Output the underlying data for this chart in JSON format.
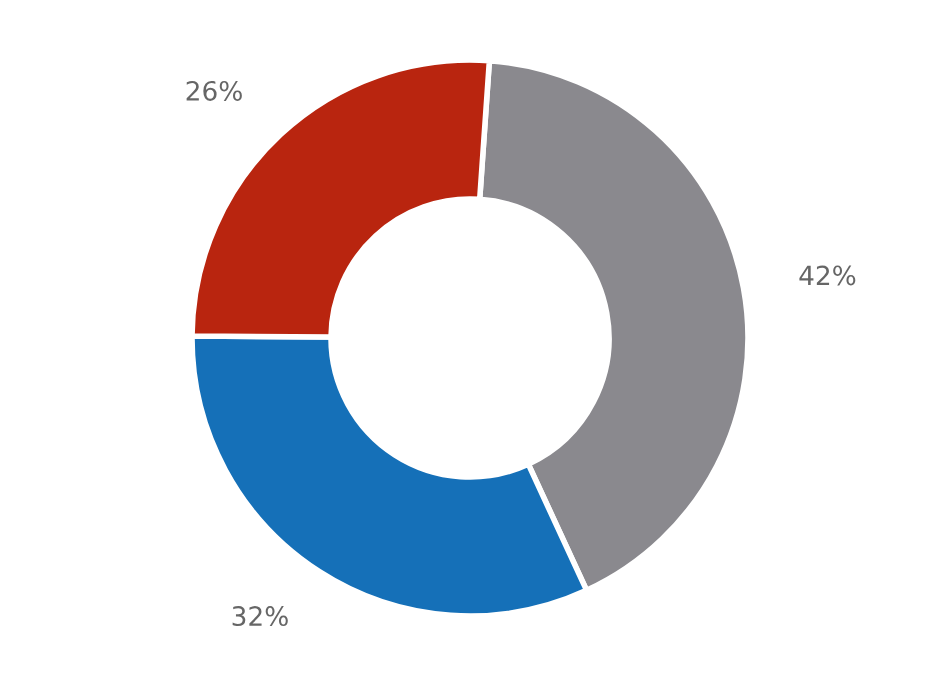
{
  "chart_data": {
    "type": "donut",
    "categories": [
      null,
      null,
      null
    ],
    "values": [
      42,
      32,
      26
    ],
    "colors": [
      "#8a898e",
      "#1570b8",
      "#b9250f"
    ],
    "value_labels": [
      "42%",
      "32%",
      "26%"
    ]
  }
}
